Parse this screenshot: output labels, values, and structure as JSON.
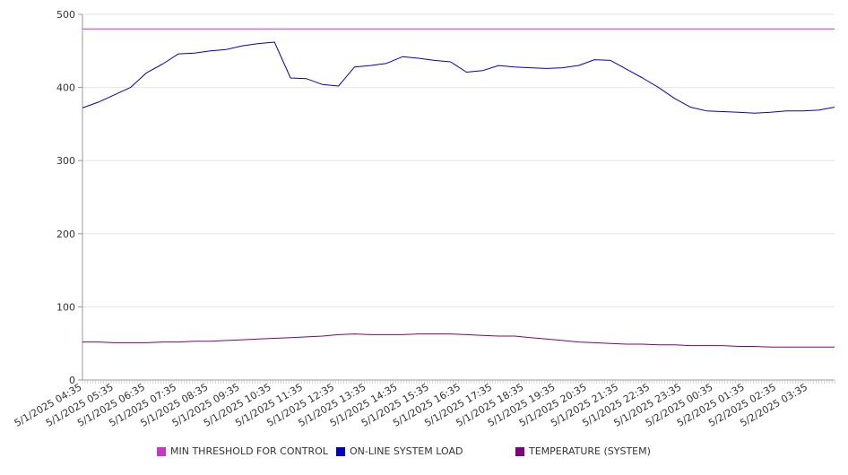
{
  "chart_data": {
    "type": "line",
    "y_ticks": [
      0,
      100,
      200,
      300,
      400,
      500
    ],
    "ylim": [
      0,
      500
    ],
    "grid": "horizontal",
    "legend_position": "bottom",
    "x_tick_labels": [
      "5/1/2025 04:35",
      "5/1/2025 05:35",
      "5/1/2025 06:35",
      "5/1/2025 07:35",
      "5/1/2025 08:35",
      "5/1/2025 09:35",
      "5/1/2025 10:35",
      "5/1/2025 11:35",
      "5/1/2025 12:35",
      "5/1/2025 13:35",
      "5/1/2025 14:35",
      "5/1/2025 15:35",
      "5/1/2025 16:35",
      "5/1/2025 17:35",
      "5/1/2025 18:35",
      "5/1/2025 19:35",
      "5/1/2025 20:35",
      "5/1/2025 21:35",
      "5/1/2025 22:35",
      "5/1/2025 23:35",
      "5/2/2025 00:35",
      "5/2/2025 01:35",
      "5/2/2025 02:35",
      "5/2/2025 03:35"
    ],
    "x": [
      "5/1/2025 04:35",
      "5/1/2025 05:05",
      "5/1/2025 05:35",
      "5/1/2025 06:05",
      "5/1/2025 06:35",
      "5/1/2025 07:05",
      "5/1/2025 07:35",
      "5/1/2025 08:05",
      "5/1/2025 08:35",
      "5/1/2025 09:05",
      "5/1/2025 09:35",
      "5/1/2025 10:05",
      "5/1/2025 10:35",
      "5/1/2025 11:05",
      "5/1/2025 11:35",
      "5/1/2025 12:05",
      "5/1/2025 12:35",
      "5/1/2025 13:05",
      "5/1/2025 13:35",
      "5/1/2025 14:05",
      "5/1/2025 14:35",
      "5/1/2025 15:05",
      "5/1/2025 15:35",
      "5/1/2025 16:05",
      "5/1/2025 16:35",
      "5/1/2025 17:05",
      "5/1/2025 17:35",
      "5/1/2025 18:05",
      "5/1/2025 18:35",
      "5/1/2025 19:05",
      "5/1/2025 19:35",
      "5/1/2025 20:05",
      "5/1/2025 20:35",
      "5/1/2025 21:05",
      "5/1/2025 21:35",
      "5/1/2025 22:05",
      "5/1/2025 22:35",
      "5/1/2025 23:05",
      "5/1/2025 23:35",
      "5/2/2025 00:05",
      "5/2/2025 00:35",
      "5/2/2025 01:05",
      "5/2/2025 01:35",
      "5/2/2025 02:05",
      "5/2/2025 02:35",
      "5/2/2025 03:05",
      "5/2/2025 03:35",
      "5/2/2025 04:05"
    ],
    "series": [
      {
        "name": "MIN THRESHOLD FOR CONTROL",
        "color": "#cc33cc",
        "values": [
          480,
          480,
          480,
          480,
          480,
          480,
          480,
          480,
          480,
          480,
          480,
          480,
          480,
          480,
          480,
          480,
          480,
          480,
          480,
          480,
          480,
          480,
          480,
          480,
          480,
          480,
          480,
          480,
          480,
          480,
          480,
          480,
          480,
          480,
          480,
          480,
          480,
          480,
          480,
          480,
          480,
          480,
          480,
          480,
          480,
          480,
          480,
          480
        ]
      },
      {
        "name": "ON-LINE SYSTEM LOAD",
        "color": "#0000cc",
        "values": [
          372,
          380,
          390,
          400,
          420,
          432,
          446,
          447,
          450,
          452,
          457,
          460,
          462,
          413,
          412,
          404,
          402,
          428,
          430,
          433,
          442,
          440,
          437,
          435,
          421,
          423,
          430,
          428,
          427,
          426,
          427,
          430,
          438,
          437,
          425,
          413,
          400,
          385,
          373,
          368,
          367,
          366,
          365,
          366,
          368,
          368,
          369,
          373
        ]
      },
      {
        "name": "TEMPERATURE (SYSTEM)",
        "color": "#800080",
        "values": [
          52,
          52,
          51,
          51,
          51,
          52,
          52,
          53,
          53,
          54,
          55,
          56,
          57,
          58,
          59,
          60,
          62,
          63,
          62,
          62,
          62,
          63,
          63,
          63,
          62,
          61,
          60,
          60,
          58,
          56,
          54,
          52,
          51,
          50,
          49,
          49,
          48,
          48,
          47,
          47,
          47,
          46,
          46,
          45,
          45,
          45,
          45,
          45
        ]
      }
    ]
  }
}
